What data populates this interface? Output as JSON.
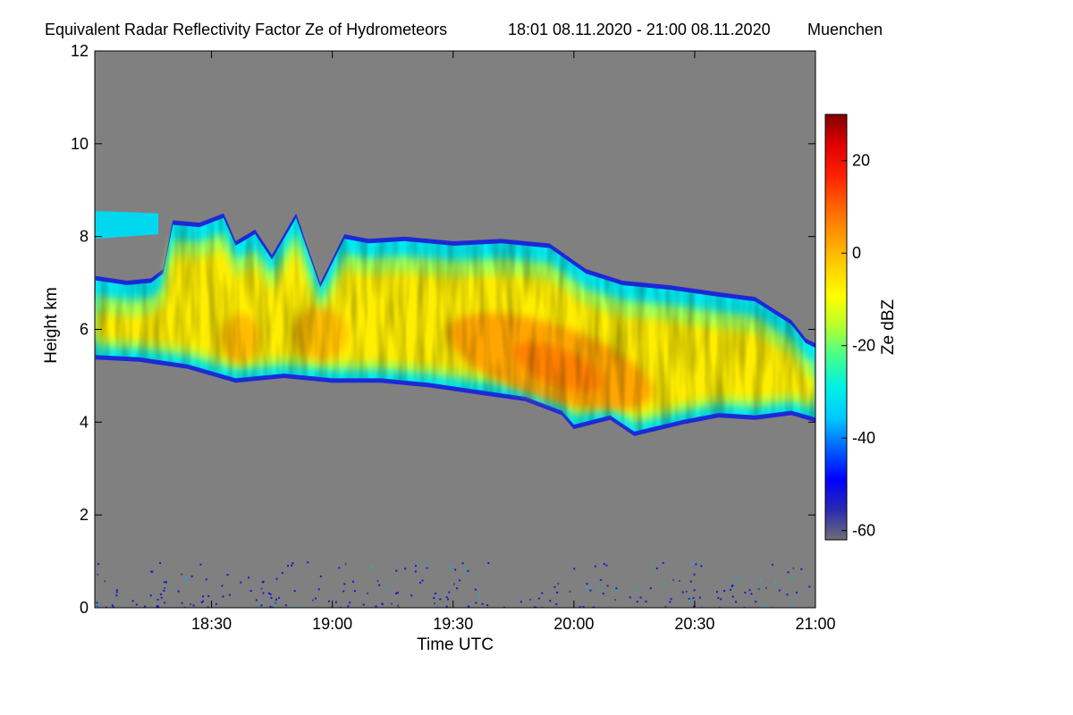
{
  "chart_data": {
    "type": "heatmap",
    "title": "Equivalent Radar Reflectivity Factor Ze of Hydrometeors",
    "time_range": "18:01 08.11.2020 - 21:00 08.11.2020",
    "location": "Muenchen",
    "xlabel": "Time UTC",
    "ylabel": "Height km",
    "x_range_hours": [
      18.0167,
      21.0
    ],
    "ylim": [
      0,
      12
    ],
    "x_ticks": [
      {
        "hour": 18.5,
        "label": "18:30"
      },
      {
        "hour": 19.0,
        "label": "19:00"
      },
      {
        "hour": 19.5,
        "label": "19:30"
      },
      {
        "hour": 20.0,
        "label": "20:00"
      },
      {
        "hour": 20.5,
        "label": "20:30"
      },
      {
        "hour": 21.0,
        "label": "21:00"
      }
    ],
    "y_ticks": [
      {
        "value": 0,
        "label": "0"
      },
      {
        "value": 2,
        "label": "2"
      },
      {
        "value": 4,
        "label": "4"
      },
      {
        "value": 6,
        "label": "6"
      },
      {
        "value": 8,
        "label": "8"
      },
      {
        "value": 10,
        "label": "10"
      },
      {
        "value": 12,
        "label": "12"
      }
    ],
    "colorbar": {
      "label": "Ze dBZ",
      "range": [
        -62,
        30
      ],
      "ticks": [
        {
          "value": 20,
          "label": "20"
        },
        {
          "value": 0,
          "label": "0"
        },
        {
          "value": -20,
          "label": "-20"
        },
        {
          "value": -40,
          "label": "-40"
        },
        {
          "value": -60,
          "label": "-60"
        }
      ],
      "colors": [
        "#6e6e78",
        "#2a2ab0",
        "#0000ff",
        "#0060ff",
        "#00c8ff",
        "#00f0e6",
        "#40ff90",
        "#b4ff30",
        "#ffff00",
        "#ffd000",
        "#ff9a00",
        "#ff6000",
        "#ff2000",
        "#e00000",
        "#800000"
      ]
    },
    "background_color": "#808080",
    "cloud_layer": {
      "description": "main precipitating cloud band",
      "top_km": [
        [
          18.02,
          7.15
        ],
        [
          18.15,
          7.05
        ],
        [
          18.25,
          7.1
        ],
        [
          18.3,
          7.3
        ],
        [
          18.34,
          8.35
        ],
        [
          18.45,
          8.3
        ],
        [
          18.55,
          8.5
        ],
        [
          18.6,
          7.9
        ],
        [
          18.68,
          8.15
        ],
        [
          18.75,
          7.6
        ],
        [
          18.85,
          8.5
        ],
        [
          18.95,
          7.0
        ],
        [
          19.05,
          8.05
        ],
        [
          19.15,
          7.95
        ],
        [
          19.3,
          8.0
        ],
        [
          19.5,
          7.9
        ],
        [
          19.7,
          7.95
        ],
        [
          19.9,
          7.85
        ],
        [
          20.05,
          7.3
        ],
        [
          20.2,
          7.05
        ],
        [
          20.4,
          6.95
        ],
        [
          20.6,
          6.8
        ],
        [
          20.75,
          6.7
        ],
        [
          20.9,
          6.2
        ],
        [
          20.96,
          5.8
        ],
        [
          21.0,
          5.7
        ]
      ],
      "base_km": [
        [
          18.02,
          5.35
        ],
        [
          18.2,
          5.3
        ],
        [
          18.4,
          5.15
        ],
        [
          18.6,
          4.85
        ],
        [
          18.8,
          4.95
        ],
        [
          19.0,
          4.85
        ],
        [
          19.2,
          4.85
        ],
        [
          19.4,
          4.75
        ],
        [
          19.6,
          4.6
        ],
        [
          19.8,
          4.45
        ],
        [
          19.95,
          4.15
        ],
        [
          20.0,
          3.85
        ],
        [
          20.15,
          4.05
        ],
        [
          20.25,
          3.7
        ],
        [
          20.45,
          3.95
        ],
        [
          20.6,
          4.1
        ],
        [
          20.75,
          4.05
        ],
        [
          20.9,
          4.15
        ],
        [
          21.0,
          4.0
        ]
      ],
      "upper_patch": {
        "hours": [
          18.02,
          18.28
        ],
        "top_km": 8.55,
        "base_km": 7.95
      },
      "max_core": {
        "hour": 19.9,
        "height_km": 5.3,
        "ze_dbz": 8
      }
    },
    "clutter": {
      "description": "sparse low-level echoes",
      "height_km": [
        0,
        1.0
      ],
      "ze_dbz_range": [
        -45,
        -25
      ]
    }
  }
}
